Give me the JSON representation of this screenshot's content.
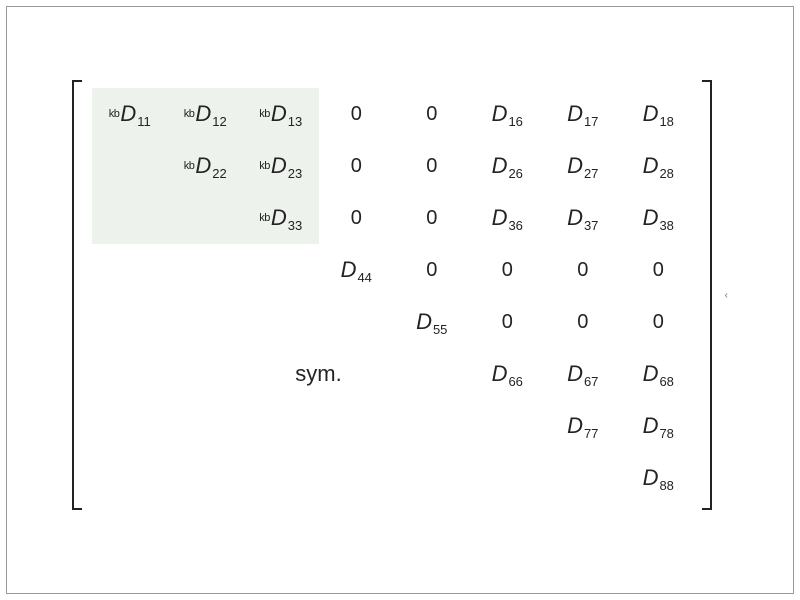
{
  "type": "matrix",
  "size": 8,
  "background_color": "#ffffff",
  "text_color": "#232323",
  "bracket_color": "#232323",
  "highlight_color": "#eef2ed",
  "fontsize_main": 22,
  "fontsize_sub": 13,
  "fontsize_pre": 11,
  "sym_label": "sym.",
  "prefix": "kb",
  "letter": "D",
  "cells": {
    "r0c0": {
      "pre": true,
      "sub": "11",
      "hilite": true
    },
    "r0c1": {
      "pre": true,
      "sub": "12",
      "hilite": true
    },
    "r0c2": {
      "pre": true,
      "sub": "13",
      "hilite": true
    },
    "r0c3": {
      "zero": true
    },
    "r0c4": {
      "zero": true
    },
    "r0c5": {
      "sub": "16"
    },
    "r0c6": {
      "sub": "17"
    },
    "r0c7": {
      "sub": "18"
    },
    "r1c1": {
      "pre": true,
      "sub": "22",
      "hilite": true
    },
    "r1c2": {
      "pre": true,
      "sub": "23",
      "hilite": true
    },
    "r1c3": {
      "zero": true
    },
    "r1c4": {
      "zero": true
    },
    "r1c5": {
      "sub": "26"
    },
    "r1c6": {
      "sub": "27"
    },
    "r1c7": {
      "sub": "28"
    },
    "r2c2": {
      "pre": true,
      "sub": "33",
      "hilite": true
    },
    "r2c3": {
      "zero": true
    },
    "r2c4": {
      "zero": true
    },
    "r2c5": {
      "sub": "36"
    },
    "r2c6": {
      "sub": "37"
    },
    "r2c7": {
      "sub": "38"
    },
    "r3c3": {
      "sub": "44"
    },
    "r3c4": {
      "zero": true
    },
    "r3c5": {
      "zero": true
    },
    "r3c6": {
      "zero": true
    },
    "r3c7": {
      "zero": true
    },
    "r4c4": {
      "sub": "55"
    },
    "r4c5": {
      "zero": true
    },
    "r4c6": {
      "zero": true
    },
    "r4c7": {
      "zero": true
    },
    "r5c5": {
      "sub": "66"
    },
    "r5c6": {
      "sub": "67"
    },
    "r5c7": {
      "sub": "68"
    },
    "r6c6": {
      "sub": "77"
    },
    "r6c7": {
      "sub": "78"
    },
    "r7c7": {
      "sub": "88"
    }
  },
  "highlight_empty": [
    "r1c0",
    "r2c0",
    "r2c1"
  ],
  "sym_pos": {
    "row": 5,
    "col": 2
  }
}
